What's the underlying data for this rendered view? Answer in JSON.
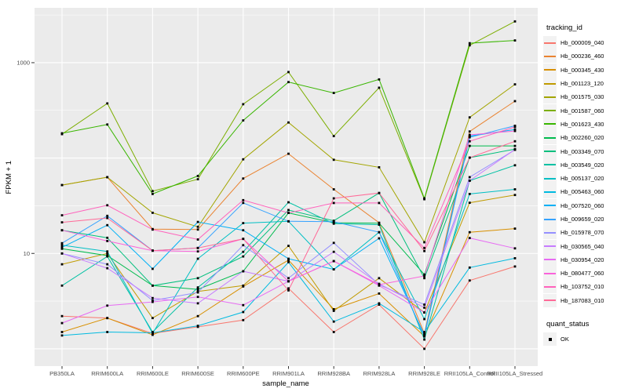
{
  "figure": {
    "background": "#FFFFFF",
    "panel_background": "#EBEBEB",
    "grid_color": "#FFFFFF",
    "axis_text_color": "#4D4D4D",
    "tick_color": "#333333",
    "point_color": "#000000"
  },
  "chart_data": {
    "type": "line",
    "title": "",
    "xlabel": "sample_name",
    "ylabel": "FPKM + 1",
    "y_scale": "log10",
    "grid": "white major and minor gridlines on gray panel",
    "legend_position": "right",
    "y_ticks": [
      {
        "label": "1000",
        "value": 1000
      },
      {
        "label": "10",
        "value": 10
      }
    ],
    "y_major_gridlines": [
      1,
      10,
      100,
      1000
    ],
    "y_minor_gridlines": [
      3.162,
      31.62,
      316.2,
      3162
    ],
    "y_range_approx": [
      0.7,
      3700
    ],
    "categories": [
      "PB350LA",
      "RRIM600LA",
      "RRIM600LE",
      "RRIM600SE",
      "RRIM600PE",
      "RRIM901LA",
      "RRIM928BA",
      "RRIM928LA",
      "RRIM928LE",
      "RRII105LA_Control",
      "RRII105LA_Stressed"
    ],
    "series": [
      {
        "name": "Hb_000009_040",
        "color": "#F8766D",
        "values": [
          2.2,
          2.1,
          1.45,
          1.7,
          2.0,
          4.3,
          1.5,
          2.9,
          1.0,
          5.2,
          7.3
        ]
      },
      {
        "name": "Hb_000236_460",
        "color": "#EA8331",
        "values": [
          52,
          63,
          18,
          17.8,
          61,
          111,
          47,
          21,
          1.45,
          190,
          395
        ]
      },
      {
        "name": "Hb_000345_430",
        "color": "#D89000",
        "values": [
          1.5,
          2.1,
          1.4,
          2.2,
          4.5,
          8.5,
          2.6,
          3.8,
          1.35,
          16.7,
          18.2
        ]
      },
      {
        "name": "Hb_001123_120",
        "color": "#C09B00",
        "values": [
          7.7,
          10,
          2.1,
          4.0,
          4.6,
          12,
          2.5,
          5.5,
          2.4,
          34,
          41
        ]
      },
      {
        "name": "Hb_001575_030",
        "color": "#A3A500",
        "values": [
          52,
          63,
          26.7,
          19,
          97,
          236,
          96,
          80,
          13.1,
          267,
          592
        ]
      },
      {
        "name": "Hb_001587_060",
        "color": "#7CAE00",
        "values": [
          178,
          374,
          45,
          60,
          367,
          798,
          170,
          546,
          37,
          1520,
          2710
        ]
      },
      {
        "name": "Hb_001623_430",
        "color": "#39B600",
        "values": [
          182,
          225,
          42,
          65,
          248,
          626,
          481,
          668,
          37.8,
          1600,
          1710
        ]
      },
      {
        "name": "Hb_002260_020",
        "color": "#00BB4E",
        "values": [
          11.2,
          9.5,
          4.6,
          4.2,
          6.5,
          26.6,
          21,
          20.8,
          6.0,
          134,
          134
        ]
      },
      {
        "name": "Hb_003349_070",
        "color": "#00BF7D",
        "values": [
          17.5,
          14.6,
          4.6,
          5.5,
          9.3,
          28.5,
          22,
          43,
          5.5,
          101,
          124
        ]
      },
      {
        "name": "Hb_003549_020",
        "color": "#00C1A3",
        "values": [
          4.6,
          9.3,
          1.5,
          4.4,
          10.4,
          34.4,
          20.5,
          20,
          1.25,
          58,
          84
        ]
      },
      {
        "name": "Hb_005137_020",
        "color": "#00BFC4",
        "values": [
          12.2,
          10.5,
          1.45,
          8.8,
          20.8,
          21.7,
          6.8,
          16.7,
          2.05,
          42,
          47
        ]
      },
      {
        "name": "Hb_005463_060",
        "color": "#00BAE0",
        "values": [
          1.38,
          1.5,
          1.47,
          1.74,
          2.43,
          8.1,
          1.93,
          3.0,
          1.5,
          7.1,
          8.9
        ]
      },
      {
        "name": "Hb_007520_060",
        "color": "#00B0F6",
        "values": [
          11.6,
          19.8,
          6.9,
          21.4,
          17.5,
          8.8,
          6.8,
          14.4,
          1.4,
          170,
          199
        ]
      },
      {
        "name": "Hb_009659_020",
        "color": "#35A2FF",
        "values": [
          12.8,
          24.8,
          10.7,
          11.4,
          33.9,
          21.7,
          21.5,
          16.7,
          1.35,
          165,
          218
        ]
      },
      {
        "name": "Hb_015978_070",
        "color": "#9590FF",
        "values": [
          10,
          7.7,
          3.2,
          3.9,
          12.2,
          5.5,
          12.9,
          4.7,
          2.9,
          63,
          122
        ]
      },
      {
        "name": "Hb_030565_040",
        "color": "#C77CFF",
        "values": [
          10,
          7.0,
          3.4,
          3.0,
          6.5,
          5.1,
          10.4,
          4.8,
          2.7,
          58,
          123
        ]
      },
      {
        "name": "Hb_030954_020",
        "color": "#E76BF3",
        "values": [
          1.86,
          2.84,
          3.1,
          3.5,
          2.87,
          5.1,
          8.3,
          4.6,
          2.4,
          14.5,
          11.3
        ]
      },
      {
        "name": "Hb_080477_060",
        "color": "#FA62DB",
        "values": [
          17.5,
          13.5,
          10.7,
          10.5,
          14.2,
          5.1,
          8.3,
          4.7,
          5.8,
          175,
          192
        ]
      },
      {
        "name": "Hb_103752_010",
        "color": "#FF62BC",
        "values": [
          25.1,
          32,
          17.8,
          14,
          36.2,
          26.6,
          33.8,
          33.8,
          11.4,
          150,
          212
        ]
      },
      {
        "name": "Hb_187083_010",
        "color": "#FF6A98",
        "values": [
          21.2,
          23.5,
          10.7,
          11.4,
          14.2,
          4.1,
          37.8,
          43,
          10.6,
          101,
          150
        ]
      }
    ],
    "legend_tracking": {
      "title": "tracking_id"
    },
    "legend_quant": {
      "title": "quant_status",
      "entries": [
        {
          "label": "OK",
          "color": "#000000"
        }
      ]
    }
  }
}
